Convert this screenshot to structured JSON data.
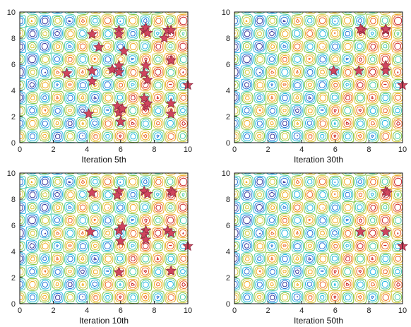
{
  "chart_data": [
    {
      "type": "scatter",
      "title": "",
      "xlabel": "Iteration 5th",
      "ylabel": "",
      "xlim": [
        0,
        10
      ],
      "ylim": [
        0,
        10
      ],
      "x_ticks": [
        "0",
        "2",
        "4",
        "6",
        "8",
        "10"
      ],
      "y_ticks": [
        "0",
        "2",
        "4",
        "6",
        "8",
        "10"
      ],
      "background": "contour",
      "marker": "star",
      "marker_color": "#d0455e",
      "points": [
        [
          2.8,
          5.3
        ],
        [
          4.1,
          2.2
        ],
        [
          4.3,
          8.3
        ],
        [
          4.3,
          5.5
        ],
        [
          4.3,
          4.7
        ],
        [
          4.7,
          7.3
        ],
        [
          5.5,
          5.6
        ],
        [
          5.9,
          8.6
        ],
        [
          5.9,
          8.3
        ],
        [
          5.9,
          5.9
        ],
        [
          5.9,
          5.4
        ],
        [
          5.8,
          2.8
        ],
        [
          5.9,
          2.3
        ],
        [
          6.0,
          1.6
        ],
        [
          6.1,
          2.6
        ],
        [
          6.2,
          7.0
        ],
        [
          7.4,
          8.6
        ],
        [
          7.5,
          8.8
        ],
        [
          7.6,
          8.4
        ],
        [
          7.5,
          5.9
        ],
        [
          7.4,
          5.3
        ],
        [
          7.6,
          4.8
        ],
        [
          7.4,
          3.4
        ],
        [
          7.5,
          2.8
        ],
        [
          7.6,
          3.0
        ],
        [
          8.6,
          8.0
        ],
        [
          8.8,
          8.6
        ],
        [
          9.0,
          8.6
        ],
        [
          9.0,
          6.3
        ],
        [
          9.0,
          3.0
        ],
        [
          9.0,
          2.2
        ],
        [
          10.0,
          4.4
        ]
      ]
    },
    {
      "type": "scatter",
      "title": "",
      "xlabel": "Iteration 30th",
      "ylabel": "",
      "xlim": [
        0,
        10
      ],
      "ylim": [
        0,
        10
      ],
      "x_ticks": [
        "0",
        "2",
        "4",
        "6",
        "8",
        "10"
      ],
      "y_ticks": [
        "0",
        "2",
        "4",
        "6",
        "8",
        "10"
      ],
      "background": "contour",
      "marker": "star",
      "marker_color": "#d0455e",
      "points": [
        [
          5.9,
          5.5
        ],
        [
          7.4,
          5.5
        ],
        [
          7.6,
          8.6
        ],
        [
          7.5,
          8.7
        ],
        [
          9.0,
          8.6
        ],
        [
          9.0,
          8.7
        ],
        [
          9.0,
          5.5
        ],
        [
          9.0,
          5.9
        ],
        [
          10.0,
          4.4
        ]
      ]
    },
    {
      "type": "scatter",
      "title": "",
      "xlabel": "Iteration 10th",
      "ylabel": "",
      "xlim": [
        0,
        10
      ],
      "ylim": [
        0,
        10
      ],
      "x_ticks": [
        "0",
        "2",
        "4",
        "6",
        "8",
        "10"
      ],
      "y_ticks": [
        "0",
        "2",
        "4",
        "6",
        "8",
        "10"
      ],
      "background": "contour",
      "marker": "star",
      "marker_color": "#d0455e",
      "points": [
        [
          4.3,
          8.5
        ],
        [
          4.2,
          5.5
        ],
        [
          5.9,
          8.6
        ],
        [
          5.8,
          8.3
        ],
        [
          5.9,
          5.6
        ],
        [
          6.1,
          5.9
        ],
        [
          6.0,
          4.8
        ],
        [
          5.9,
          2.4
        ],
        [
          7.4,
          8.6
        ],
        [
          7.6,
          8.4
        ],
        [
          7.5,
          5.6
        ],
        [
          7.4,
          5.3
        ],
        [
          7.5,
          4.9
        ],
        [
          8.8,
          5.6
        ],
        [
          9.0,
          8.6
        ],
        [
          9.1,
          8.5
        ],
        [
          9.0,
          5.4
        ],
        [
          9.0,
          2.5
        ],
        [
          10.0,
          4.4
        ]
      ]
    },
    {
      "type": "scatter",
      "title": "",
      "xlabel": "Iteration 50th",
      "ylabel": "",
      "xlim": [
        0,
        10
      ],
      "ylim": [
        0,
        10
      ],
      "x_ticks": [
        "0",
        "2",
        "4",
        "6",
        "8",
        "10"
      ],
      "y_ticks": [
        "0",
        "2",
        "4",
        "6",
        "8",
        "10"
      ],
      "background": "contour",
      "marker": "star",
      "marker_color": "#d0455e",
      "points": [
        [
          7.5,
          5.5
        ],
        [
          9.0,
          8.6
        ],
        [
          9.1,
          8.5
        ],
        [
          9.0,
          5.5
        ],
        [
          10.0,
          4.4
        ]
      ]
    }
  ]
}
